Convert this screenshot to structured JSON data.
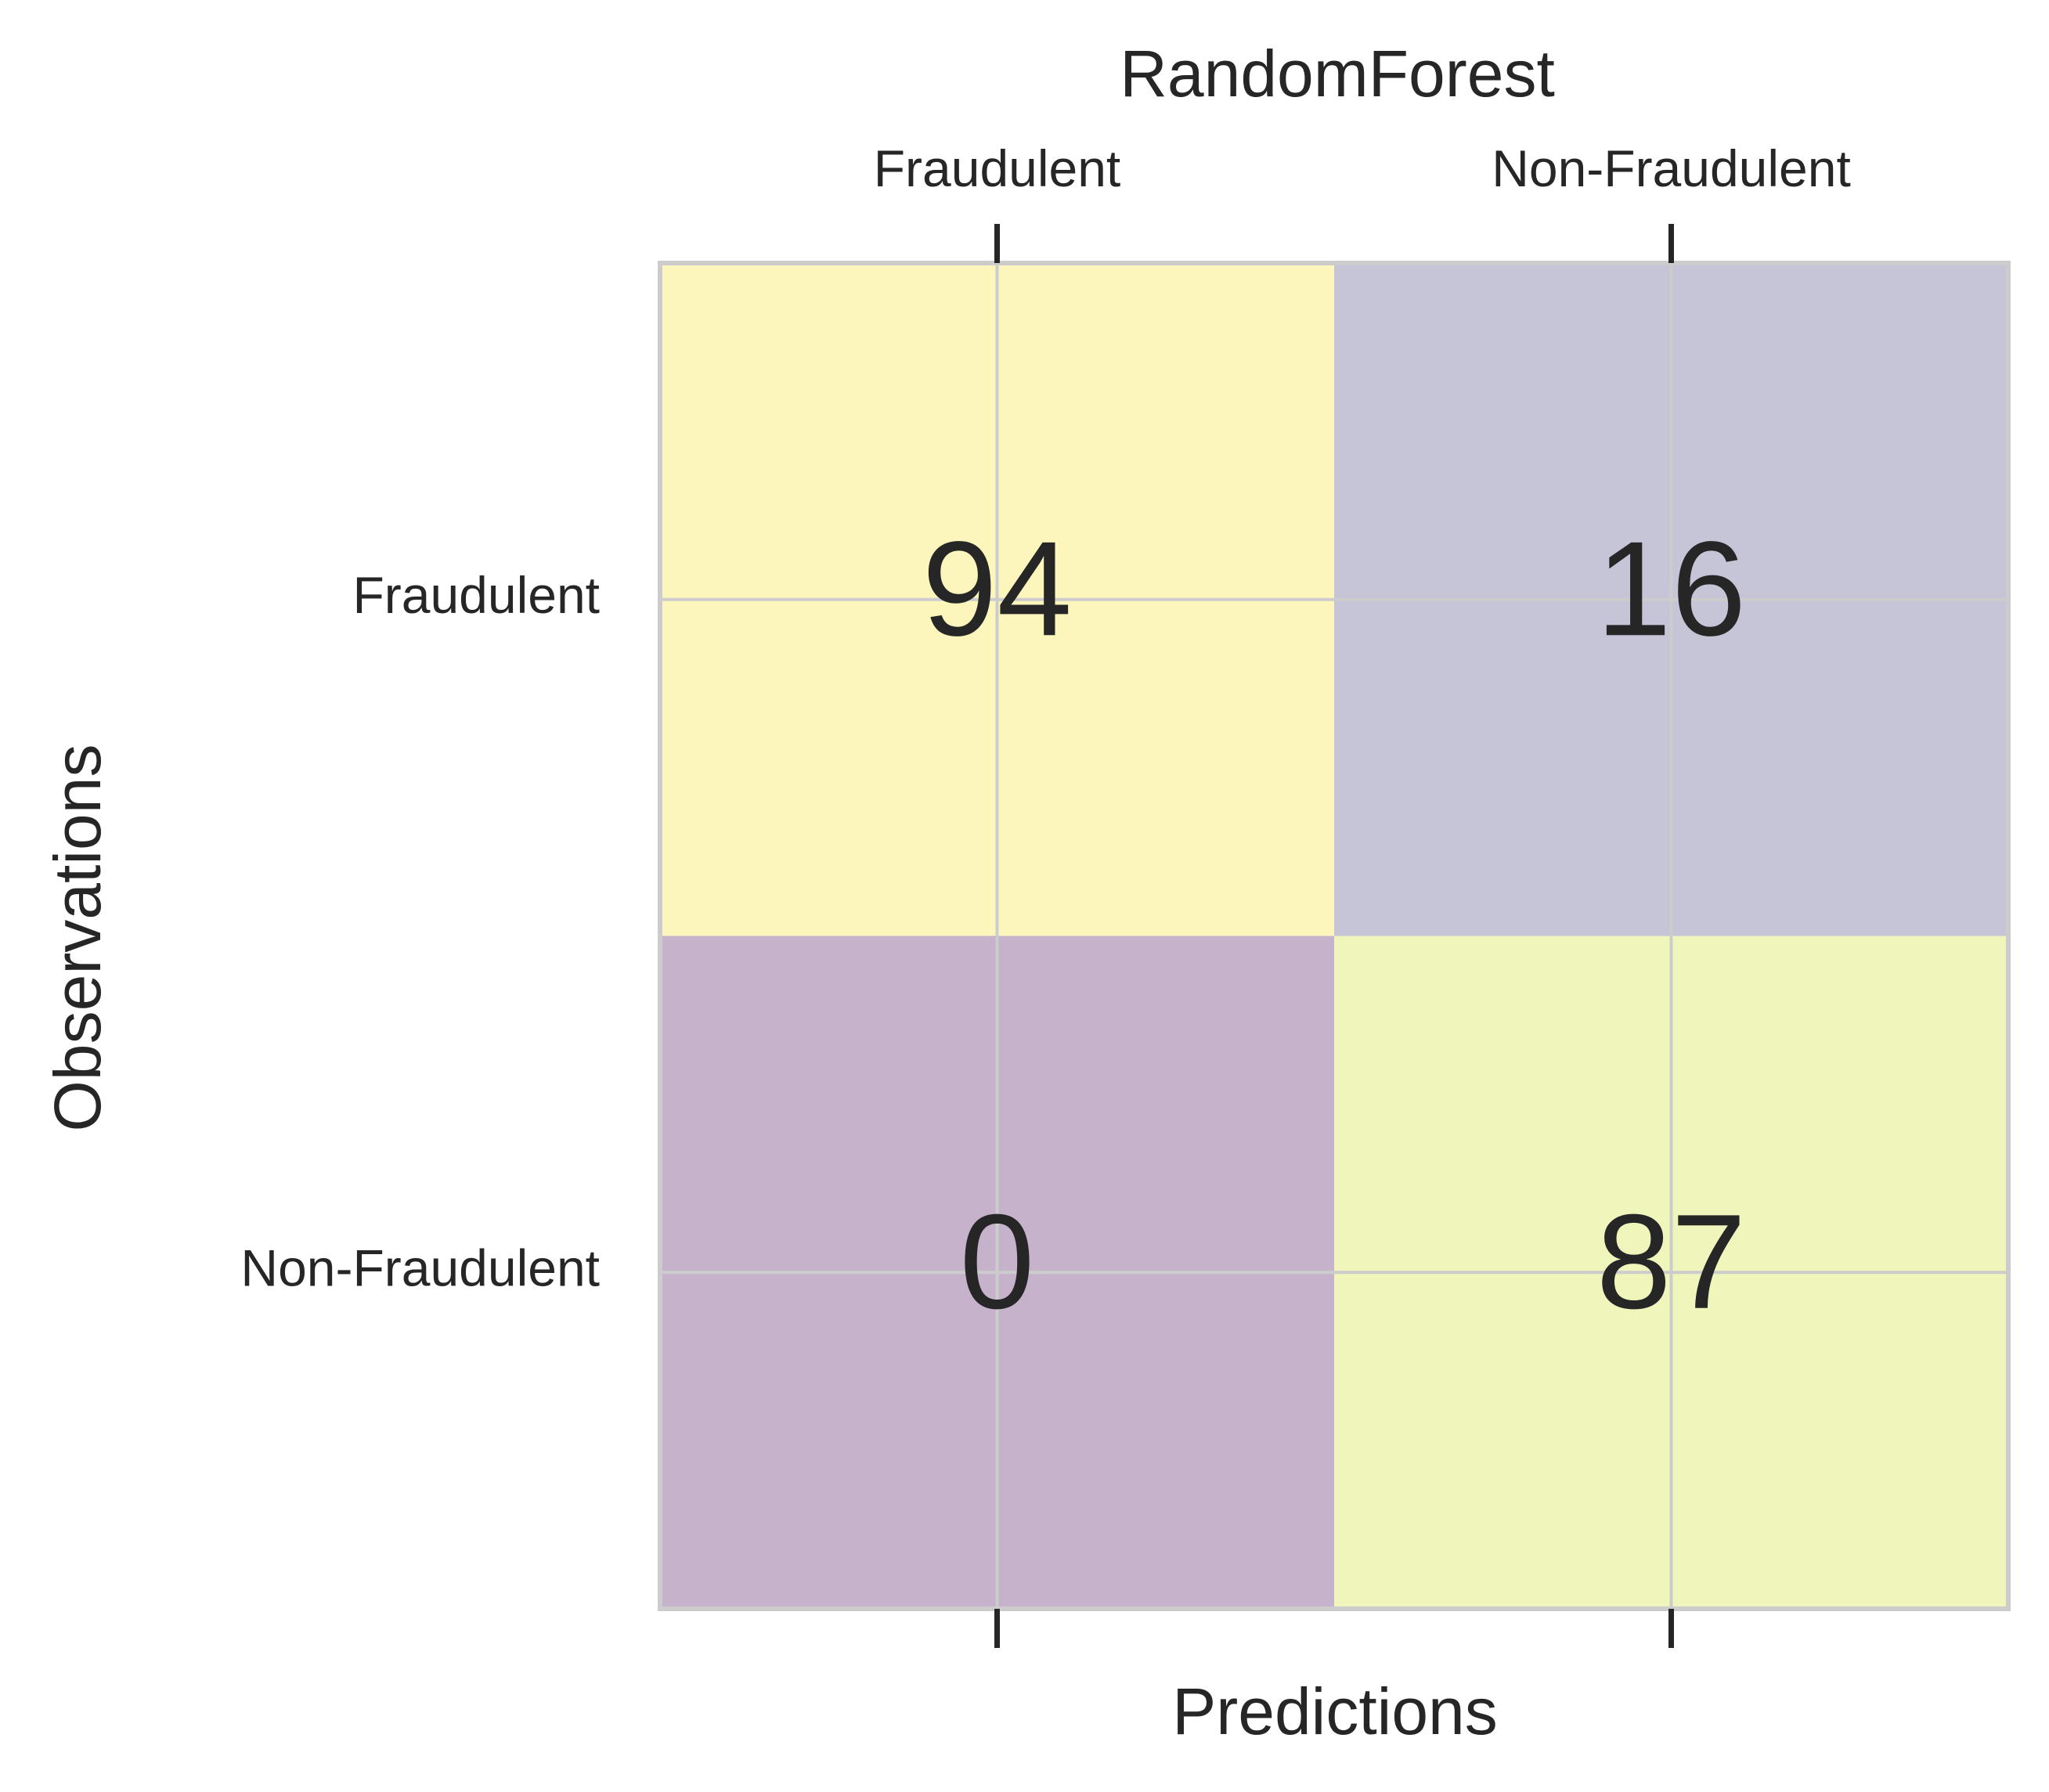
{
  "chart_data": {
    "type": "heatmap",
    "title": "RandomForest",
    "xlabel": "Predictions",
    "ylabel": "Observations",
    "x_categories": [
      "Fraudulent",
      "Non-Fraudulent"
    ],
    "y_categories": [
      "Fraudulent",
      "Non-Fraudulent"
    ],
    "values": [
      [
        94,
        16
      ],
      [
        0,
        87
      ]
    ],
    "cell_colors": [
      [
        "#fcf6bd",
        "#c6c4d7"
      ],
      [
        "#c6b2cb",
        "#eff5bb"
      ]
    ],
    "x_axis_position": "top",
    "grid": true,
    "colors": {
      "text": "#262626",
      "grid": "#cccccc",
      "tick": "#262626"
    }
  }
}
